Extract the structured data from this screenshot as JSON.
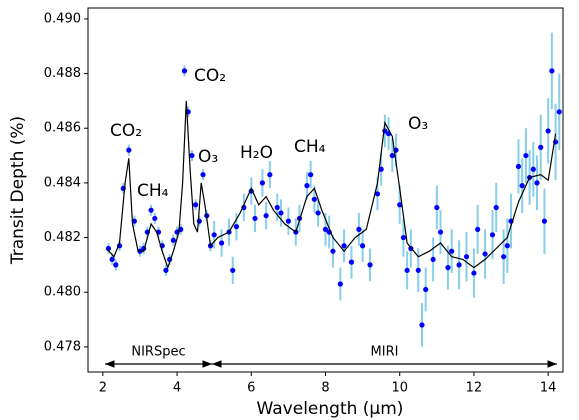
{
  "chart_data": {
    "type": "scatter",
    "xlabel": "Wavelength (μm)",
    "ylabel": "Transit Depth (%)",
    "xlim": [
      1.6,
      14.4
    ],
    "ylim": [
      0.47708,
      0.4904
    ],
    "xticks": [
      2,
      4,
      6,
      8,
      10,
      12,
      14
    ],
    "yticks": [
      0.478,
      {
        "value": 0.48,
        "label": "0.480"
      },
      0.482,
      0.484,
      0.486,
      0.488,
      {
        "value": 0.49,
        "label": "0.490"
      }
    ],
    "annotations": [
      "CO₂",
      "CH₄",
      "CO₂",
      "O₃",
      "H₂O",
      "CH₄",
      "O₃"
    ],
    "regions": [
      "NIRSpec",
      "MIRI"
    ],
    "series": [
      {
        "type": "scatter",
        "color": "#0000ff",
        "error_color": "#87ceeb",
        "x": [
          2.15,
          2.25,
          2.35,
          2.45,
          2.55,
          2.7,
          2.85,
          3.0,
          3.1,
          3.2,
          3.3,
          3.4,
          3.5,
          3.6,
          3.7,
          3.8,
          3.9,
          4.0,
          4.1,
          4.2,
          4.3,
          4.4,
          4.5,
          4.6,
          4.7,
          4.8,
          4.9,
          5.0,
          5.2,
          5.4,
          5.5,
          5.6,
          5.8,
          6.0,
          6.1,
          6.3,
          6.4,
          6.5,
          6.7,
          6.8,
          7.0,
          7.2,
          7.3,
          7.5,
          7.6,
          7.7,
          7.8,
          8.0,
          8.1,
          8.2,
          8.4,
          8.5,
          8.7,
          8.9,
          9.0,
          9.2,
          9.4,
          9.5,
          9.6,
          9.7,
          9.8,
          9.9,
          10.0,
          10.1,
          10.2,
          10.3,
          10.5,
          10.6,
          10.7,
          10.9,
          11.0,
          11.1,
          11.3,
          11.4,
          11.6,
          11.8,
          12.0,
          12.1,
          12.3,
          12.5,
          12.6,
          12.8,
          12.9,
          13.0,
          13.2,
          13.3,
          13.4,
          13.5,
          13.6,
          13.7,
          13.8,
          13.9,
          14.0,
          14.1,
          14.2,
          14.3
        ],
        "values": [
          0.4816,
          0.4812,
          0.481,
          0.4817,
          0.4838,
          0.4852,
          0.4826,
          0.4815,
          0.4816,
          0.4822,
          0.483,
          0.4827,
          0.4822,
          0.4817,
          0.4808,
          0.4812,
          0.4819,
          0.4822,
          0.4823,
          0.4881,
          0.4866,
          0.485,
          0.4832,
          0.4826,
          0.4843,
          0.4828,
          0.4817,
          0.4821,
          0.4818,
          0.4822,
          0.4808,
          0.4824,
          0.4831,
          0.4837,
          0.4827,
          0.484,
          0.4828,
          0.4843,
          0.4831,
          0.4829,
          0.4826,
          0.4822,
          0.4827,
          0.4839,
          0.4843,
          0.4834,
          0.4829,
          0.4823,
          0.4822,
          0.4815,
          0.4803,
          0.4817,
          0.4811,
          0.4823,
          0.4817,
          0.481,
          0.4836,
          0.4845,
          0.4859,
          0.4858,
          0.485,
          0.4852,
          0.4832,
          0.482,
          0.4808,
          0.4816,
          0.4808,
          0.4788,
          0.4801,
          0.4812,
          0.4831,
          0.4822,
          0.4809,
          0.4815,
          0.481,
          0.4813,
          0.4807,
          0.4823,
          0.4814,
          0.4821,
          0.4831,
          0.4813,
          0.4817,
          0.4826,
          0.4846,
          0.4839,
          0.485,
          0.4842,
          0.4845,
          0.484,
          0.4853,
          0.4826,
          0.4859,
          0.4881,
          0.4855,
          0.4866
        ],
        "errors": [
          0.0002,
          0.0002,
          0.0002,
          0.0002,
          0.0002,
          0.0002,
          0.0002,
          0.0002,
          0.0002,
          0.0002,
          0.0002,
          0.0002,
          0.0002,
          0.0002,
          0.0002,
          0.0002,
          0.0002,
          0.0002,
          0.0002,
          0.0002,
          0.0002,
          0.0002,
          0.0002,
          0.0002,
          0.0002,
          0.0002,
          0.0002,
          0.0005,
          0.0005,
          0.0005,
          0.0005,
          0.0005,
          0.0005,
          0.0005,
          0.0005,
          0.0005,
          0.0005,
          0.0005,
          0.0005,
          0.0005,
          0.0005,
          0.0005,
          0.0005,
          0.0005,
          0.0005,
          0.0005,
          0.0005,
          0.0006,
          0.0006,
          0.0006,
          0.0006,
          0.0006,
          0.0006,
          0.0006,
          0.0006,
          0.0006,
          0.0006,
          0.0006,
          0.0006,
          0.0006,
          0.0006,
          0.0006,
          0.0007,
          0.0007,
          0.0007,
          0.0007,
          0.0008,
          0.0008,
          0.0008,
          0.0008,
          0.0008,
          0.0008,
          0.0008,
          0.0008,
          0.0009,
          0.0009,
          0.0009,
          0.0009,
          0.0009,
          0.0009,
          0.0009,
          0.001,
          0.001,
          0.001,
          0.001,
          0.001,
          0.001,
          0.001,
          0.001,
          0.001,
          0.0012,
          0.0012,
          0.0012,
          0.0014,
          0.0014,
          0.0014
        ]
      },
      {
        "type": "line",
        "color": "#000000",
        "x": [
          2.1,
          2.3,
          2.45,
          2.6,
          2.7,
          2.8,
          2.95,
          3.1,
          3.3,
          3.45,
          3.6,
          3.75,
          3.9,
          4.05,
          4.15,
          4.25,
          4.35,
          4.45,
          4.55,
          4.65,
          4.75,
          4.9,
          5.1,
          5.4,
          5.7,
          6.0,
          6.2,
          6.4,
          6.6,
          6.9,
          7.2,
          7.5,
          7.7,
          7.9,
          8.2,
          8.5,
          8.8,
          9.1,
          9.4,
          9.6,
          9.8,
          10.0,
          10.2,
          10.5,
          10.8,
          11.1,
          11.4,
          11.7,
          12.0,
          12.3,
          12.6,
          12.9,
          13.2,
          13.5,
          13.8,
          14.0,
          14.2
        ],
        "values": [
          0.4816,
          0.4813,
          0.4818,
          0.484,
          0.4849,
          0.4825,
          0.4815,
          0.4815,
          0.4825,
          0.4822,
          0.4815,
          0.4809,
          0.4815,
          0.4822,
          0.484,
          0.487,
          0.4845,
          0.4825,
          0.4822,
          0.484,
          0.4832,
          0.4817,
          0.482,
          0.4822,
          0.4829,
          0.4838,
          0.4832,
          0.4835,
          0.483,
          0.4825,
          0.4822,
          0.4835,
          0.4838,
          0.483,
          0.482,
          0.4815,
          0.482,
          0.4823,
          0.484,
          0.4862,
          0.4857,
          0.4838,
          0.4818,
          0.4813,
          0.4815,
          0.4818,
          0.4813,
          0.4812,
          0.4809,
          0.4812,
          0.4816,
          0.482,
          0.4833,
          0.4842,
          0.4843,
          0.4841,
          0.4858
        ]
      }
    ]
  }
}
